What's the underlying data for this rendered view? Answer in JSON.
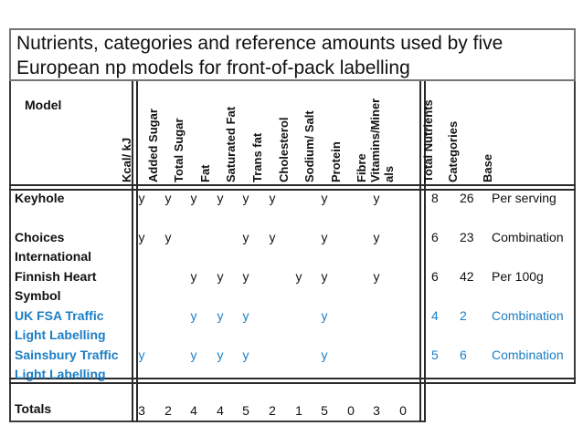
{
  "title": "Nutrients, categories and reference amounts used by five European np models for front-of-pack labelling",
  "table": {
    "model_header": "Model",
    "nutrient_columns": [
      "Kcal/ kJ",
      "Added Sugar",
      "Total Sugar",
      "Fat",
      "Saturated Fat",
      "Trans fat",
      "Cholesterol",
      "Sodium/ Salt",
      "Protein",
      "Fibre",
      "Vitamins/Minerals"
    ],
    "summary_columns": [
      "Total Nutrients",
      "Categories",
      "Base"
    ],
    "rows": [
      {
        "model": "Keyhole",
        "flags": [
          "y",
          "y",
          "y",
          "y",
          "y",
          "y",
          "",
          "y",
          "",
          "y",
          ""
        ],
        "total_nutrients": "8",
        "categories": "26",
        "base": "Per serving",
        "accent": false
      },
      {
        "model": "Choices International",
        "flags": [
          "y",
          "y",
          "",
          "",
          "y",
          "y",
          "",
          "y",
          "",
          "y",
          ""
        ],
        "total_nutrients": "6",
        "categories": "23",
        "base": "Combination",
        "accent": false
      },
      {
        "model": "Finnish Heart Symbol",
        "flags": [
          "",
          "",
          "y",
          "y",
          "y",
          "",
          "y",
          "y",
          "",
          "y",
          ""
        ],
        "total_nutrients": "6",
        "categories": "42",
        "base": "Per 100g",
        "accent": false
      },
      {
        "model": "UK FSA Traffic Light Labelling",
        "flags": [
          "",
          "",
          "y",
          "y",
          "y",
          "",
          "",
          "y",
          "",
          "",
          ""
        ],
        "total_nutrients": "4",
        "categories": "2",
        "base": "Combination",
        "accent": true
      },
      {
        "model": "Sainsbury Traffic Light Labelling",
        "flags": [
          "y",
          "",
          "y",
          "y",
          "y",
          "",
          "",
          "y",
          "",
          "",
          ""
        ],
        "total_nutrients": "5",
        "categories": "6",
        "base": "Combination",
        "accent": true
      }
    ],
    "totals": {
      "label": "Totals",
      "values": [
        "3",
        "2",
        "4",
        "4",
        "5",
        "2",
        "1",
        "5",
        "0",
        "3",
        "0"
      ]
    }
  },
  "colors": {
    "accent_blue": "#1b7ec6",
    "border_dark": "#2a2a2a",
    "border_gray": "#757575"
  }
}
